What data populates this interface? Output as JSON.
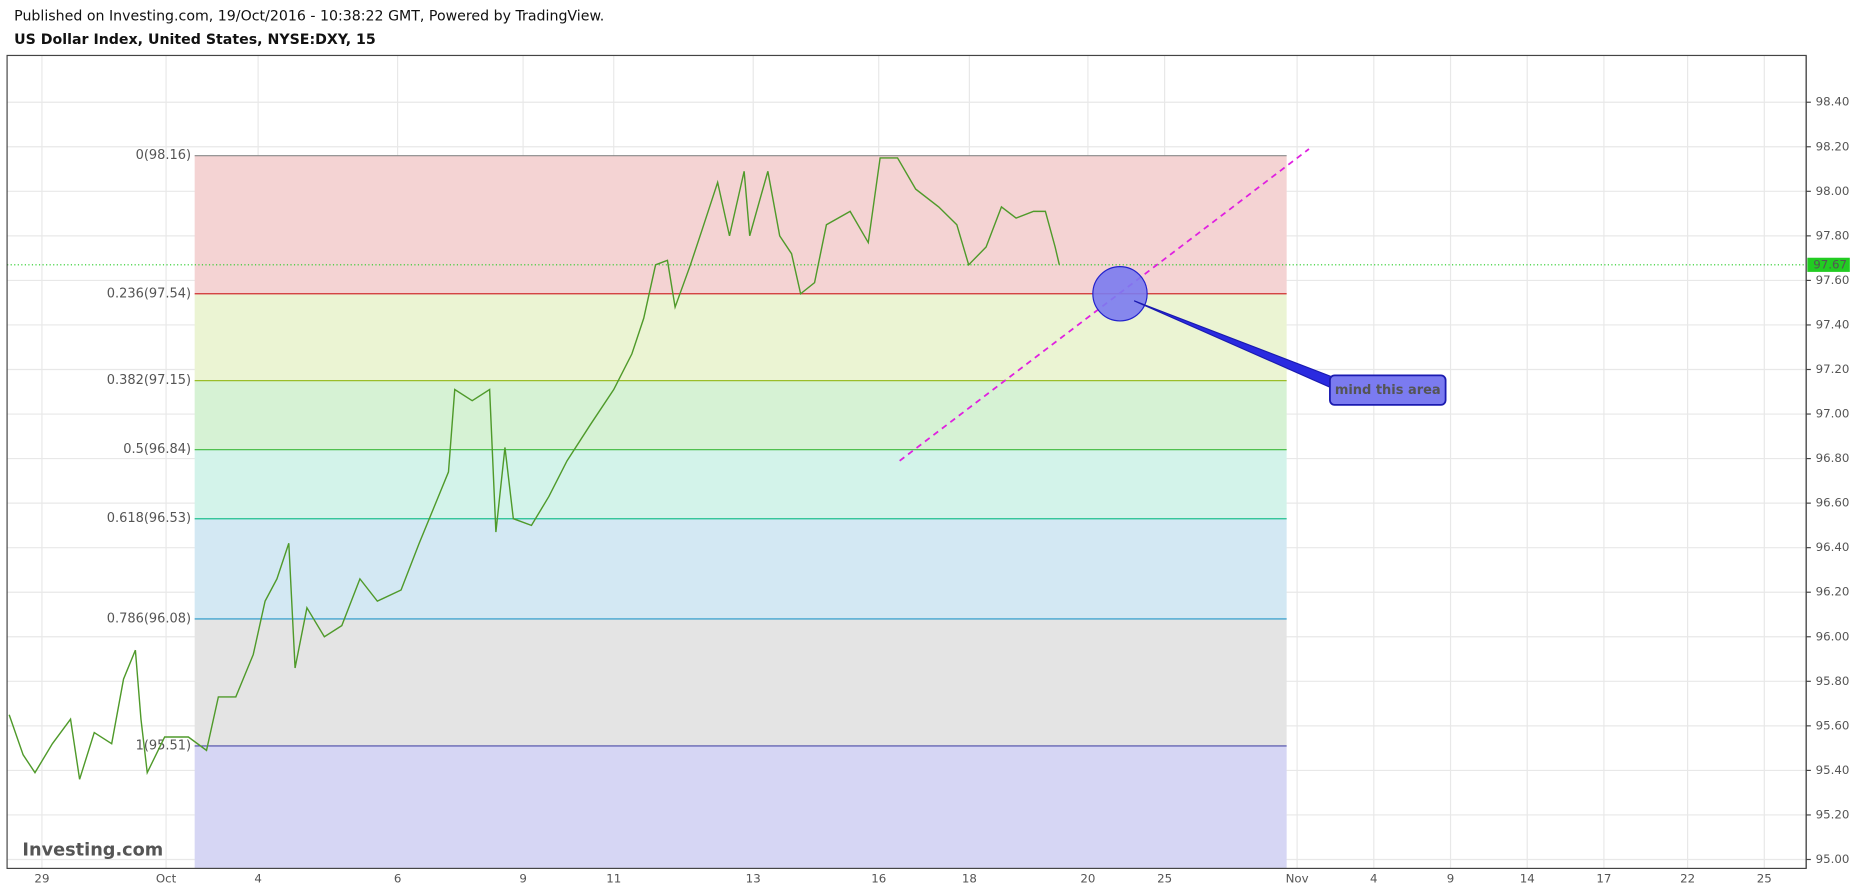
{
  "chart_data": {
    "type": "line",
    "subtitle": "Published on Investing.com, 19/Oct/2016 - 10:38:22 GMT, Powered by TradingView.",
    "title": "US Dollar Index, United States, NYSE:DXY, 15",
    "watermark": "Investing.com",
    "xlim": [
      -0.5,
      25.3
    ],
    "ylim": [
      94.96,
      98.61
    ],
    "grid": true,
    "xticks": [
      {
        "value": 0,
        "label": "29"
      },
      {
        "value": 1.78,
        "label": "Oct"
      },
      {
        "value": 3.1,
        "label": "4"
      },
      {
        "value": 5.1,
        "label": "6"
      },
      {
        "value": 6.9,
        "label": "9"
      },
      {
        "value": 8.2,
        "label": "11"
      },
      {
        "value": 10.2,
        "label": "13"
      },
      {
        "value": 12.0,
        "label": "16"
      },
      {
        "value": 13.3,
        "label": "18"
      },
      {
        "value": 15.0,
        "label": "20"
      },
      {
        "value": 16.1,
        "label": "25"
      },
      {
        "value": 18.0,
        "label": "Nov"
      },
      {
        "value": 19.1,
        "label": "4"
      },
      {
        "value": 20.2,
        "label": "9"
      },
      {
        "value": 21.3,
        "label": "14"
      },
      {
        "value": 22.4,
        "label": "17"
      },
      {
        "value": 23.6,
        "label": "22"
      },
      {
        "value": 24.7,
        "label": "25"
      }
    ],
    "yticks": [
      {
        "value": 95,
        "label": "95.00"
      },
      {
        "value": 95.2,
        "label": "95.20"
      },
      {
        "value": 95.4,
        "label": "95.40"
      },
      {
        "value": 95.6,
        "label": "95.60"
      },
      {
        "value": 95.8,
        "label": "95.80"
      },
      {
        "value": 96,
        "label": "96.00"
      },
      {
        "value": 96.2,
        "label": "96.20"
      },
      {
        "value": 96.4,
        "label": "96.40"
      },
      {
        "value": 96.6,
        "label": "96.60"
      },
      {
        "value": 96.8,
        "label": "96.80"
      },
      {
        "value": 97,
        "label": "97.00"
      },
      {
        "value": 97.2,
        "label": "97.20"
      },
      {
        "value": 97.4,
        "label": "97.40"
      },
      {
        "value": 97.6,
        "label": "97.60"
      },
      {
        "value": 97.8,
        "label": "97.80"
      },
      {
        "value": 98,
        "label": "98.00"
      },
      {
        "value": 98.2,
        "label": "98.20"
      },
      {
        "value": 98.4,
        "label": "98.40"
      }
    ],
    "x": [
      -0.47,
      -0.27,
      -0.1,
      0.15,
      0.41,
      0.54,
      0.75,
      1.0,
      1.17,
      1.34,
      1.42,
      1.51,
      1.76,
      2.1,
      2.36,
      2.53,
      2.78,
      3.03,
      3.2,
      3.37,
      3.54,
      3.63,
      3.8,
      4.05,
      4.3,
      4.56,
      4.81,
      5.15,
      5.41,
      5.66,
      5.83,
      5.92,
      6.17,
      6.42,
      6.51,
      6.64,
      6.76,
      7.02,
      7.27,
      7.53,
      7.86,
      8.2,
      8.46,
      8.63,
      8.8,
      8.97,
      9.08,
      9.3,
      9.47,
      9.69,
      9.86,
      10.07,
      10.15,
      10.41,
      10.58,
      10.75,
      10.88,
      11.08,
      11.25,
      11.59,
      11.85,
      12.02,
      12.27,
      12.53,
      12.86,
      13.12,
      13.29,
      13.54,
      13.76,
      13.97,
      14.22,
      14.39,
      14.53,
      14.59
    ],
    "series": [
      {
        "color": "#4f9a2a",
        "values": [
          95.65,
          95.47,
          95.39,
          95.52,
          95.63,
          95.36,
          95.57,
          95.52,
          95.81,
          95.94,
          95.63,
          95.39,
          95.55,
          95.55,
          95.49,
          95.73,
          95.73,
          95.92,
          96.16,
          96.26,
          96.42,
          95.86,
          96.13,
          96.0,
          96.05,
          96.26,
          96.16,
          96.21,
          96.42,
          96.61,
          96.74,
          97.11,
          97.06,
          97.11,
          96.47,
          96.85,
          96.53,
          96.5,
          96.63,
          96.79,
          96.95,
          97.11,
          97.27,
          97.43,
          97.67,
          97.69,
          97.48,
          97.67,
          97.83,
          98.04,
          97.8,
          98.09,
          97.8,
          98.09,
          97.8,
          97.72,
          97.54,
          97.59,
          97.85,
          97.91,
          97.77,
          98.15,
          98.15,
          98.01,
          97.93,
          97.85,
          97.67,
          97.75,
          97.93,
          97.88,
          97.91,
          97.91,
          97.75,
          97.67
        ]
      }
    ],
    "fib_range": [
      2.19,
      17.85
    ],
    "fib_levels": [
      {
        "label": "0(98.16)",
        "price": 98.16,
        "color": "#888888",
        "fill": "#f4d3d3"
      },
      {
        "label": "0.236(97.54)",
        "price": 97.54,
        "color": "#d03030",
        "fill": "#ebf4d3"
      },
      {
        "label": "0.382(97.15)",
        "price": 97.15,
        "color": "#9bbd2a",
        "fill": "#d6f2d4"
      },
      {
        "label": "0.5(96.84)",
        "price": 96.84,
        "color": "#3cb93c",
        "fill": "#d3f3ea"
      },
      {
        "label": "0.618(96.53)",
        "price": 96.53,
        "color": "#1fbf8f",
        "fill": "#d3e8f3"
      },
      {
        "label": "0.786(96.08)",
        "price": 96.08,
        "color": "#2196c8",
        "fill": "#e4e4e4"
      },
      {
        "label": "1(95.51)",
        "price": 95.51,
        "color": "#4a4aa8",
        "fill": "#d6d6f4"
      }
    ],
    "last_price": {
      "value": 97.67,
      "color": "#22cc22"
    },
    "trend_line": {
      "x": [
        12.3,
        18.17
      ],
      "y": [
        96.79,
        98.19
      ],
      "color": "#e020e0"
    },
    "callout": {
      "text": "mind this area",
      "x": 19.3,
      "y": 97.11,
      "target_x": 15.46,
      "target_y": 97.54,
      "color": "#7b7bf0"
    }
  }
}
